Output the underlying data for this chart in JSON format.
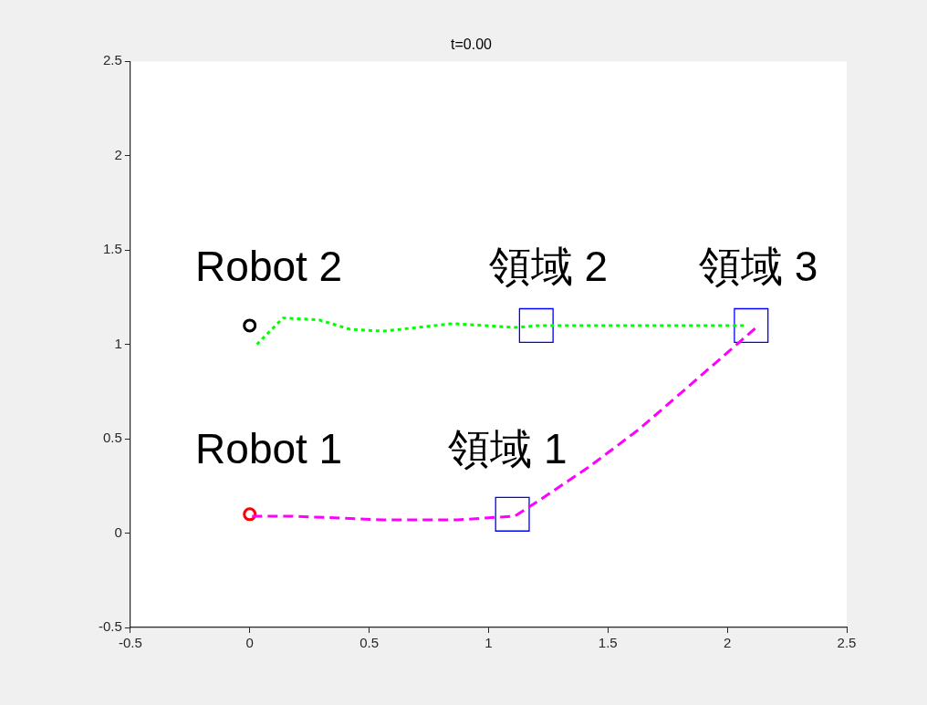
{
  "chart_data": {
    "type": "line",
    "title": "t=0.00",
    "xlim": [
      -0.5,
      2.5
    ],
    "ylim": [
      -0.5,
      2.5
    ],
    "xticks": [
      -0.5,
      0,
      0.5,
      1,
      1.5,
      2,
      2.5
    ],
    "yticks": [
      -0.5,
      0,
      0.5,
      1,
      1.5,
      2,
      2.5
    ],
    "grid": false,
    "legend": false,
    "series": [
      {
        "color": "#ff00ff",
        "line_style": "dashed",
        "marker": "none",
        "x": [
          0.01,
          0.18,
          0.56,
          0.87,
          1.11,
          1.22,
          1.42,
          1.63,
          1.84,
          2.04,
          2.13
        ],
        "values": [
          0.09,
          0.09,
          0.07,
          0.07,
          0.09,
          0.18,
          0.35,
          0.55,
          0.78,
          1.0,
          1.1
        ]
      },
      {
        "color": "#00ff00",
        "line_style": "dotted",
        "marker": "none",
        "x": [
          0.03,
          0.14,
          0.29,
          0.42,
          0.56,
          0.85,
          1.11,
          1.22,
          1.6,
          2.07
        ],
        "values": [
          1.0,
          1.14,
          1.13,
          1.08,
          1.07,
          1.11,
          1.09,
          1.1,
          1.1,
          1.1
        ]
      },
      {
        "type": "scatter",
        "color": "#ff0000",
        "marker": "circle",
        "x": [
          0
        ],
        "values": [
          0.1
        ]
      },
      {
        "type": "scatter",
        "color": "#000000",
        "marker": "circle",
        "x": [
          0
        ],
        "values": [
          1.1
        ]
      },
      {
        "type": "scatter",
        "color": "#0000ff",
        "marker": "square",
        "x": [
          1.1,
          1.2,
          2.1
        ],
        "values": [
          0.1,
          1.1,
          1.1
        ]
      }
    ],
    "annotations": [
      "Robot 2",
      "領域 2",
      "領域 3",
      "Robot 1",
      "領域 1"
    ]
  }
}
